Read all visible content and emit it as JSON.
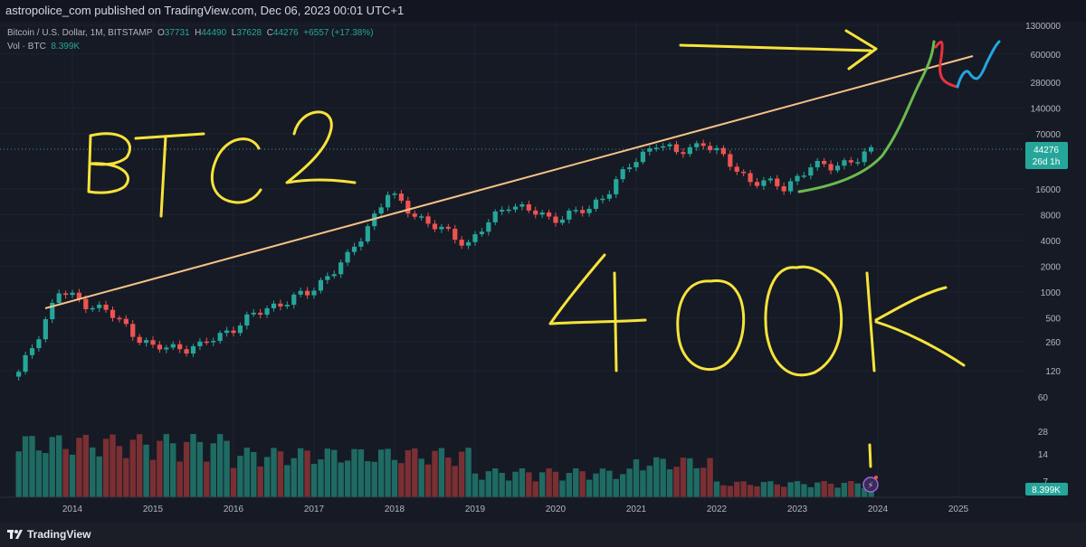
{
  "header": {
    "published": "astropolice_com published on TradingView.com, Dec 06, 2023 00:01 UTC+1"
  },
  "legend": {
    "symbol": "Bitcoin / U.S. Dollar, 1M, BITSTAMP",
    "o_label": "O",
    "o": "37731",
    "h_label": "H",
    "h": "44490",
    "l_label": "L",
    "l": "37628",
    "c_label": "C",
    "c": "44276",
    "change": "+6557 (+17.38%)",
    "vol_label": "Vol · BTC",
    "vol": "8.399K"
  },
  "footer": {
    "brand": "TradingView"
  },
  "chart_data": {
    "type": "candlestick",
    "title": "Bitcoin / U.S. Dollar, 1M, BITSTAMP",
    "y_scale": "log",
    "ylim": [
      120,
      1300000
    ],
    "price_tick_labels": [
      "1300000",
      "600000",
      "280000",
      "140000",
      "70000",
      "16000",
      "8000",
      "4000",
      "2000",
      "1000",
      "500",
      "260",
      "120"
    ],
    "volume_tick_labels": [
      "60",
      "28",
      "14",
      "7"
    ],
    "x_tick_labels": [
      "2014",
      "2015",
      "2016",
      "2017",
      "2018",
      "2019",
      "2020",
      "2021",
      "2022",
      "2023",
      "2024",
      "2025"
    ],
    "series": [
      {
        "name": "BTCUSD",
        "x": [
          "2013-05",
          "2013-11",
          "2014-06",
          "2015-01",
          "2015-08",
          "2016-06",
          "2016-12",
          "2017-06",
          "2017-12",
          "2018-06",
          "2018-12",
          "2019-06",
          "2019-12",
          "2020-06",
          "2020-12",
          "2021-04",
          "2021-07",
          "2021-11",
          "2022-06",
          "2022-11",
          "2023-03",
          "2023-06",
          "2023-10",
          "2023-12"
        ],
        "close": [
          110,
          1000,
          600,
          220,
          230,
          650,
          960,
          2500,
          14000,
          6300,
          3700,
          11000,
          7200,
          9100,
          29000,
          57000,
          41000,
          57000,
          20000,
          17000,
          28500,
          30500,
          34500,
          44276
        ]
      }
    ],
    "current_price_label": "44276",
    "countdown_label": "26d 1h",
    "current_volume_label": "8.399K",
    "annotations": [
      "BTC 2",
      "400K"
    ],
    "colors": {
      "up": "#26a69a",
      "down": "#ef5350",
      "trendline": "#f6c286",
      "drawing_yellow": "#f7e33b",
      "drawing_green": "#6abb4d",
      "drawing_red": "#e8323c",
      "drawing_blue": "#22a7e0"
    }
  }
}
